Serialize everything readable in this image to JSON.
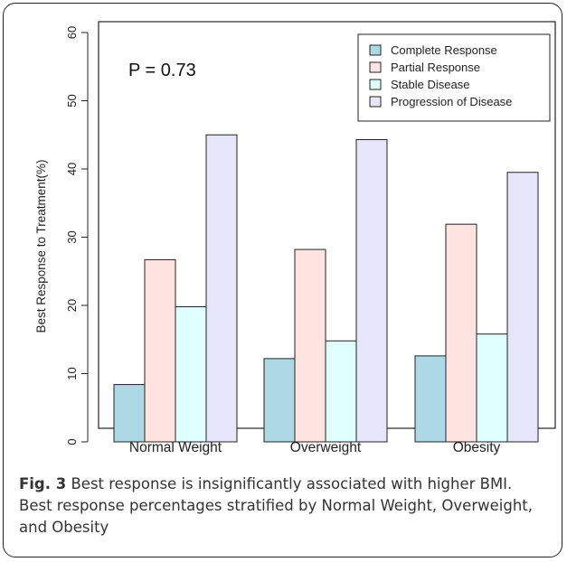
{
  "chart_data": {
    "type": "bar",
    "ylabel": "Best Response to Treatment(%)",
    "ylim": [
      0,
      60
    ],
    "yticks": [
      0,
      10,
      20,
      30,
      40,
      50,
      60
    ],
    "categories": [
      "Normal Weight",
      "Overweight",
      "Obesity"
    ],
    "series": [
      {
        "name": "Complete Response",
        "color": "#add8e6",
        "values": [
          8.4,
          12.2,
          12.6
        ]
      },
      {
        "name": "Partial Response",
        "color": "#ffe4e1",
        "values": [
          26.7,
          28.2,
          31.9
        ]
      },
      {
        "name": "Stable Disease",
        "color": "#e0ffff",
        "values": [
          19.8,
          14.8,
          15.8
        ]
      },
      {
        "name": "Progression of Disease",
        "color": "#e6e6fa",
        "values": [
          45.0,
          44.3,
          39.5
        ]
      }
    ],
    "annotation": "P = 0.73",
    "legend_position": "top-right",
    "grid": false
  },
  "caption": {
    "label": "Fig. 3",
    "text": " Best response is insignificantly associated with higher BMI. Best response percentages stratified by Normal Weight, Overweight, and Obesity"
  }
}
